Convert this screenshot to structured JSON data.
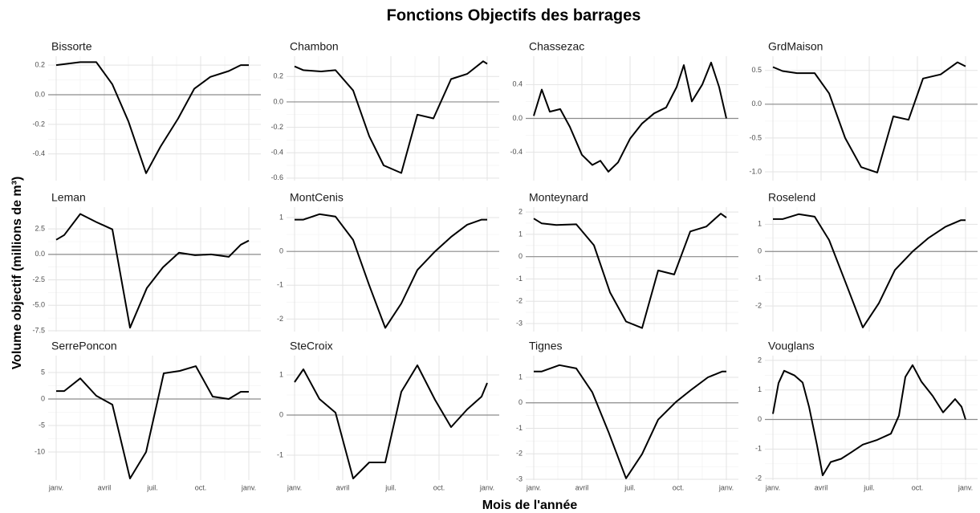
{
  "title": "Fonctions Objectifs des barrages",
  "x_label": "Mois de l'année",
  "y_label": "Volume objectif (millions de m³)",
  "xlim": [
    -0.5,
    12.75
  ],
  "xticks": [
    {
      "value": 0,
      "label": "janv."
    },
    {
      "value": 3,
      "label": "avril"
    },
    {
      "value": 6,
      "label": "juil."
    },
    {
      "value": 9,
      "label": "oct."
    },
    {
      "value": 12,
      "label": "janv."
    }
  ],
  "hline": 0,
  "chart_data": [
    {
      "type": "line",
      "title": "Bissorte",
      "ylim": [
        -0.58,
        0.26
      ],
      "yticks": [
        0.2,
        {
          "value": 0,
          "label": "0.0"
        },
        -0.2,
        -0.4
      ],
      "x": [
        0,
        1.5,
        2.5,
        3.5,
        4.5,
        5.6,
        6.5,
        7.6,
        8.6,
        9.6,
        10.75,
        11.5,
        12
      ],
      "values": [
        0.2,
        0.22,
        0.22,
        0.07,
        -0.18,
        -0.53,
        -0.35,
        -0.16,
        0.04,
        0.12,
        0.16,
        0.2,
        0.2
      ]
    },
    {
      "type": "line",
      "title": "Chambon",
      "ylim": [
        -0.62,
        0.36
      ],
      "yticks": [
        0.2,
        {
          "value": 0,
          "label": "0.0"
        },
        -0.2,
        -0.4,
        -0.6
      ],
      "x": [
        0,
        0.55,
        1.65,
        2.55,
        3.65,
        4.65,
        5.55,
        6.65,
        7.65,
        8.65,
        9.75,
        10.75,
        11.75,
        12
      ],
      "values": [
        0.28,
        0.25,
        0.24,
        0.25,
        0.09,
        -0.27,
        -0.5,
        -0.56,
        -0.1,
        -0.13,
        0.18,
        0.22,
        0.32,
        0.3
      ]
    },
    {
      "type": "line",
      "title": "Chassezac",
      "ylim": [
        -0.735,
        0.735
      ],
      "yticks": [
        0.4,
        {
          "value": 0,
          "label": "0.0"
        },
        -0.4
      ],
      "x": [
        0,
        0.5,
        1,
        1.65,
        2.25,
        3,
        3.65,
        4.15,
        4.65,
        5.25,
        6,
        6.75,
        7.5,
        8.25,
        8.9,
        9.35,
        9.85,
        10.5,
        11.05,
        11.55,
        12
      ],
      "values": [
        0.03,
        0.34,
        0.08,
        0.11,
        -0.1,
        -0.43,
        -0.55,
        -0.5,
        -0.63,
        -0.52,
        -0.24,
        -0.06,
        0.06,
        0.13,
        0.37,
        0.63,
        0.2,
        0.4,
        0.66,
        0.37,
        0
      ]
    },
    {
      "type": "line",
      "title": "GrdMaison",
      "ylim": [
        -1.13,
        0.71
      ],
      "yticks": [
        0.5,
        {
          "value": 0,
          "label": "0.0"
        },
        -0.5,
        {
          "value": -1,
          "label": "-1.0"
        }
      ],
      "x": [
        0,
        0.6,
        1.5,
        2.6,
        3.5,
        4.5,
        5.5,
        6.5,
        7.5,
        8.45,
        9.35,
        10.45,
        11.5,
        12
      ],
      "values": [
        0.55,
        0.49,
        0.46,
        0.46,
        0.16,
        -0.5,
        -0.93,
        -1.01,
        -0.18,
        -0.23,
        0.38,
        0.44,
        0.62,
        0.56
      ]
    },
    {
      "type": "line",
      "title": "Leman",
      "ylim": [
        -7.58,
        4.64
      ],
      "yticks": [
        2.5,
        {
          "value": 0,
          "label": "0.0"
        },
        -2.5,
        {
          "value": -5,
          "label": "-5.0"
        },
        -7.5
      ],
      "x": [
        0,
        0.5,
        1.5,
        2.5,
        3.5,
        4.6,
        5.65,
        6.65,
        7.65,
        8.65,
        9.65,
        10.75,
        11.5,
        12
      ],
      "values": [
        1.43,
        1.9,
        3.97,
        3.17,
        2.46,
        -7.2,
        -3.3,
        -1.27,
        0.16,
        -0.08,
        0,
        -0.24,
        0.95,
        1.35
      ]
    },
    {
      "type": "line",
      "title": "MontCenis",
      "ylim": [
        -2.37,
        1.31
      ],
      "yticks": [
        1,
        0,
        -1,
        -2
      ],
      "x": [
        0,
        0.55,
        1.55,
        2.55,
        3.65,
        4.65,
        5.65,
        6.65,
        7.65,
        8.75,
        9.75,
        10.75,
        11.65,
        12
      ],
      "values": [
        0.94,
        0.94,
        1.1,
        1.03,
        0.34,
        -1,
        -2.26,
        -1.54,
        -0.55,
        0,
        0.43,
        0.79,
        0.94,
        0.94
      ]
    },
    {
      "type": "line",
      "title": "Monteynard",
      "ylim": [
        -3.36,
        2.22
      ],
      "yticks": [
        2,
        1,
        0,
        -1,
        -2,
        -3
      ],
      "x": [
        0,
        0.5,
        1.4,
        2.65,
        3.75,
        4.75,
        5.75,
        6.75,
        7.75,
        8.75,
        9.75,
        10.75,
        11.65,
        12
      ],
      "values": [
        1.71,
        1.49,
        1.42,
        1.45,
        0.51,
        -1.6,
        -2.91,
        -3.2,
        -0.62,
        -0.8,
        1.13,
        1.35,
        1.93,
        1.75
      ]
    },
    {
      "type": "line",
      "title": "Roselend",
      "ylim": [
        -2.94,
        1.63
      ],
      "yticks": [
        1,
        0,
        -1,
        -2
      ],
      "x": [
        0,
        0.6,
        1.6,
        2.6,
        3.5,
        4.6,
        5.6,
        6.6,
        7.6,
        8.7,
        9.7,
        10.75,
        11.7,
        12
      ],
      "values": [
        1.19,
        1.19,
        1.37,
        1.28,
        0.42,
        -1.25,
        -2.79,
        -1.9,
        -0.68,
        0,
        0.5,
        0.91,
        1.15,
        1.15
      ]
    },
    {
      "type": "line",
      "title": "SerrePoncon",
      "ylim": [
        -15.3,
        8.18
      ],
      "yticks": [
        5,
        0,
        -5,
        -10
      ],
      "x": [
        0,
        0.5,
        1.5,
        2.5,
        3.5,
        4.6,
        5.6,
        6.7,
        7.7,
        8.7,
        9.75,
        10.75,
        11.5,
        12
      ],
      "values": [
        1.5,
        1.5,
        3.9,
        0.6,
        -1.06,
        -15,
        -10,
        4.85,
        5.3,
        6.2,
        0.45,
        0,
        1.36,
        1.36
      ]
    },
    {
      "type": "line",
      "title": "SteCroix",
      "ylim": [
        -1.62,
        1.48
      ],
      "yticks": [
        1,
        0,
        -1
      ],
      "x": [
        0,
        0.55,
        1.55,
        2.55,
        3.65,
        4.65,
        5.65,
        6.65,
        7.65,
        8.75,
        9.75,
        10.75,
        11.65,
        12
      ],
      "values": [
        0.82,
        1.14,
        0.4,
        0.06,
        -1.58,
        -1.18,
        -1.18,
        0.58,
        1.24,
        0.38,
        -0.3,
        0.14,
        0.46,
        0.8
      ]
    },
    {
      "type": "line",
      "title": "Tignes",
      "ylim": [
        -3.03,
        1.85
      ],
      "yticks": [
        1,
        0,
        -1,
        -2,
        -3
      ],
      "x": [
        0,
        0.5,
        1.6,
        2.65,
        3.65,
        4.65,
        5.75,
        6.75,
        7.75,
        8.85,
        9.85,
        10.85,
        11.75,
        12
      ],
      "values": [
        1.23,
        1.23,
        1.48,
        1.35,
        0.41,
        -1.13,
        -2.96,
        -2.01,
        -0.66,
        0.03,
        0.53,
        1,
        1.23,
        1.23
      ]
    },
    {
      "type": "line",
      "title": "Vouglans",
      "ylim": [
        -2.05,
        2.16
      ],
      "yticks": [
        2,
        1,
        0,
        -1,
        -2
      ],
      "x": [
        0,
        0.35,
        0.7,
        1.35,
        1.85,
        2.25,
        2.75,
        3.1,
        3.6,
        4.25,
        4.85,
        5.6,
        6.5,
        7.35,
        7.85,
        8.25,
        8.7,
        9.25,
        9.95,
        10.6,
        11.35,
        11.75,
        12
      ],
      "values": [
        0.19,
        1.23,
        1.65,
        1.49,
        1.25,
        0.43,
        -0.88,
        -1.89,
        -1.44,
        -1.33,
        -1.12,
        -0.85,
        -0.69,
        -0.48,
        0.13,
        1.44,
        1.84,
        1.28,
        0.8,
        0.24,
        0.69,
        0.43,
        0
      ]
    }
  ]
}
